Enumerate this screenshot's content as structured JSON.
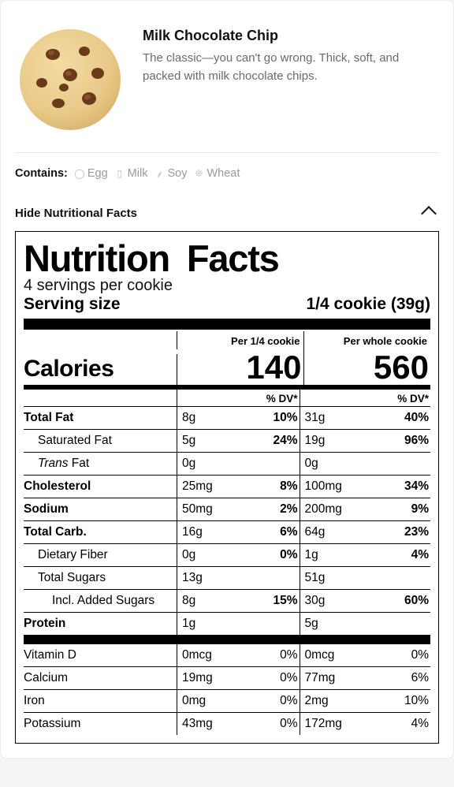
{
  "product": {
    "title": "Milk Chocolate Chip",
    "description": "The classic—you can't go wrong. Thick, soft, and packed with milk chocolate chips.",
    "image_colors": {
      "dough": "#e8c988",
      "dough_edge": "#d9b56a",
      "chip": "#6b3a1a",
      "chip_hi": "#a86a3a"
    }
  },
  "contains": {
    "label": "Contains:",
    "items": [
      {
        "name": "Egg",
        "icon": "egg-icon",
        "glyph": "◯"
      },
      {
        "name": "Milk",
        "icon": "milk-icon",
        "glyph": "▯"
      },
      {
        "name": "Soy",
        "icon": "soy-icon",
        "glyph": "⸙"
      },
      {
        "name": "Wheat",
        "icon": "wheat-icon",
        "glyph": "❊"
      }
    ]
  },
  "toggle": {
    "label": "Hide Nutritional Facts"
  },
  "nutrition": {
    "title": "Nutrition Facts",
    "servings_text": "4 servings per cookie",
    "serving_size_label": "Serving size",
    "serving_size_value": "1/4 cookie (39g)",
    "per_labels": {
      "c1": "Per 1/4 cookie",
      "c2": "Per whole cookie"
    },
    "calories_label": "Calories",
    "calories": {
      "c1": "140",
      "c2": "560"
    },
    "dv_label": "% DV*",
    "rows": [
      {
        "label": "Total Fat",
        "bold": true,
        "indent": 0,
        "c1_amt": "8g",
        "c1_dv": "10%",
        "c2_amt": "31g",
        "c2_dv": "40%"
      },
      {
        "label": "Saturated Fat",
        "bold": false,
        "indent": 1,
        "c1_amt": "5g",
        "c1_dv": "24%",
        "c2_amt": "19g",
        "c2_dv": "96%"
      },
      {
        "label": "Trans Fat",
        "bold": false,
        "italic_prefix": "Trans",
        "suffix": " Fat",
        "indent": 1,
        "c1_amt": "0g",
        "c1_dv": "",
        "c2_amt": "0g",
        "c2_dv": ""
      },
      {
        "label": "Cholesterol",
        "bold": true,
        "indent": 0,
        "c1_amt": "25mg",
        "c1_dv": "8%",
        "c2_amt": "100mg",
        "c2_dv": "34%"
      },
      {
        "label": "Sodium",
        "bold": true,
        "indent": 0,
        "c1_amt": "50mg",
        "c1_dv": "2%",
        "c2_amt": "200mg",
        "c2_dv": "9%"
      },
      {
        "label": "Total Carb.",
        "bold": true,
        "indent": 0,
        "c1_amt": "16g",
        "c1_dv": "6%",
        "c2_amt": "64g",
        "c2_dv": "23%"
      },
      {
        "label": "Dietary Fiber",
        "bold": false,
        "indent": 1,
        "c1_amt": "0g",
        "c1_dv": "0%",
        "c2_amt": "1g",
        "c2_dv": "4%"
      },
      {
        "label": "Total Sugars",
        "bold": false,
        "indent": 1,
        "c1_amt": "13g",
        "c1_dv": "",
        "c2_amt": "51g",
        "c2_dv": ""
      },
      {
        "label": "Incl. Added Sugars",
        "bold": false,
        "indent": 2,
        "c1_amt": "8g",
        "c1_dv": "15%",
        "c2_amt": "30g",
        "c2_dv": "60%"
      },
      {
        "label": "Protein",
        "bold": true,
        "indent": 0,
        "c1_amt": "1g",
        "c1_dv": "",
        "c2_amt": "5g",
        "c2_dv": ""
      }
    ],
    "vitamins": [
      {
        "label": "Vitamin D",
        "c1_amt": "0mcg",
        "c1_dv": "0%",
        "c2_amt": "0mcg",
        "c2_dv": "0%"
      },
      {
        "label": "Calcium",
        "c1_amt": "19mg",
        "c1_dv": "0%",
        "c2_amt": "77mg",
        "c2_dv": "6%"
      },
      {
        "label": "Iron",
        "c1_amt": "0mg",
        "c1_dv": "0%",
        "c2_amt": "2mg",
        "c2_dv": "10%"
      },
      {
        "label": "Potassium",
        "c1_amt": "43mg",
        "c1_dv": "0%",
        "c2_amt": "172mg",
        "c2_dv": "4%"
      }
    ]
  },
  "style": {
    "bg": "#f5f5f5",
    "card_bg": "#ffffff",
    "text": "#111111",
    "muted": "#6b6b6b",
    "allergen_text": "#9a9a9a",
    "border": "#e5e5e5",
    "rule": "#000000"
  }
}
